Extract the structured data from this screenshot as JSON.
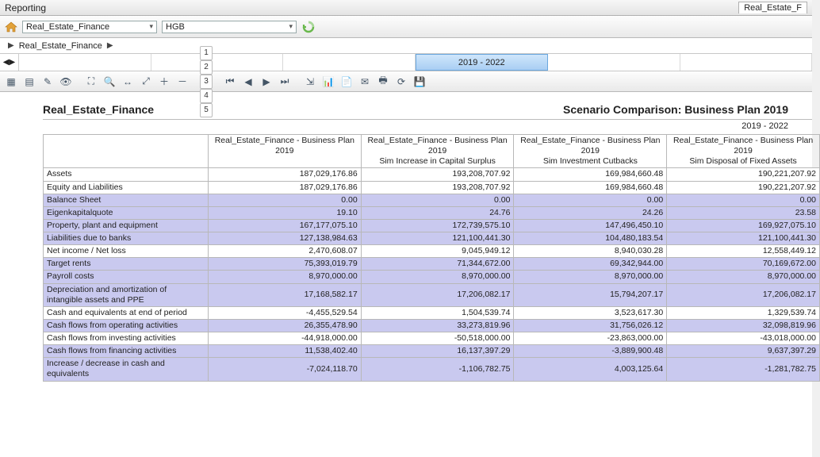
{
  "window": {
    "title": "Reporting",
    "right_tab": "Real_Estate_F"
  },
  "toolbar1": {
    "dropdown1": "Real_Estate_Finance",
    "dropdown2": "HGB"
  },
  "breadcrumb": {
    "item1": "Real_Estate_Finance"
  },
  "timeline": {
    "selected_label": "2019 - 2022"
  },
  "page_numbers": [
    "1",
    "2",
    "3",
    "4",
    "5"
  ],
  "report": {
    "title_left": "Real_Estate_Finance",
    "title_right": "Scenario Comparison: Business Plan 2019",
    "range": "2019 - 2022"
  },
  "columns": [
    {
      "top": "Real_Estate_Finance - Business Plan 2019",
      "sub": ""
    },
    {
      "top": "Real_Estate_Finance - Business Plan 2019",
      "sub": "Sim Increase in Capital Surplus"
    },
    {
      "top": "Real_Estate_Finance - Business Plan 2019",
      "sub": "Sim Investment Cutbacks"
    },
    {
      "top": "Real_Estate_Finance - Business Plan 2019",
      "sub": "Sim Disposal of Fixed Assets"
    }
  ],
  "rows": [
    {
      "alt": false,
      "label": "Assets",
      "v": [
        "187,029,176.86",
        "193,208,707.92",
        "169,984,660.48",
        "190,221,207.92"
      ]
    },
    {
      "alt": false,
      "label": "Equity and Liabilities",
      "v": [
        "187,029,176.86",
        "193,208,707.92",
        "169,984,660.48",
        "190,221,207.92"
      ]
    },
    {
      "alt": true,
      "label": "Balance Sheet",
      "v": [
        "0.00",
        "0.00",
        "0.00",
        "0.00"
      ]
    },
    {
      "alt": true,
      "label": "Eigenkapitalquote",
      "v": [
        "19.10",
        "24.76",
        "24.26",
        "23.58"
      ]
    },
    {
      "alt": true,
      "label": "Property, plant and equipment",
      "v": [
        "167,177,075.10",
        "172,739,575.10",
        "147,496,450.10",
        "169,927,075.10"
      ]
    },
    {
      "alt": true,
      "label": "Liabilities due to banks",
      "v": [
        "127,138,984.63",
        "121,100,441.30",
        "104,480,183.54",
        "121,100,441.30"
      ]
    },
    {
      "alt": false,
      "label": "Net income / Net loss",
      "v": [
        "2,470,608.07",
        "9,045,949.12",
        "8,940,030.28",
        "12,558,449.12"
      ]
    },
    {
      "alt": true,
      "label": "Target rents",
      "v": [
        "75,393,019.79",
        "71,344,672.00",
        "69,342,944.00",
        "70,169,672.00"
      ]
    },
    {
      "alt": true,
      "label": "Payroll costs",
      "v": [
        "8,970,000.00",
        "8,970,000.00",
        "8,970,000.00",
        "8,970,000.00"
      ]
    },
    {
      "alt": true,
      "label": "Depreciation and amortization of intangible assets and PPE",
      "v": [
        "17,168,582.17",
        "17,206,082.17",
        "15,794,207.17",
        "17,206,082.17"
      ]
    },
    {
      "alt": false,
      "label": "Cash and equivalents at end of period",
      "v": [
        "-4,455,529.54",
        "1,504,539.74",
        "3,523,617.30",
        "1,329,539.74"
      ]
    },
    {
      "alt": true,
      "label": "Cash flows from operating activities",
      "v": [
        "26,355,478.90",
        "33,273,819.96",
        "31,756,026.12",
        "32,098,819.96"
      ]
    },
    {
      "alt": false,
      "label": "Cash flows from investing activities",
      "v": [
        "-44,918,000.00",
        "-50,518,000.00",
        "-23,863,000.00",
        "-43,018,000.00"
      ]
    },
    {
      "alt": true,
      "label": "Cash flows from financing activities",
      "v": [
        "11,538,402.40",
        "16,137,397.29",
        "-3,889,900.48",
        "9,637,397.29"
      ]
    },
    {
      "alt": true,
      "label": "Increase / decrease in cash and equivalents",
      "v": [
        "-7,024,118.70",
        "-1,106,782.75",
        "4,003,125.64",
        "-1,281,782.75"
      ]
    }
  ]
}
